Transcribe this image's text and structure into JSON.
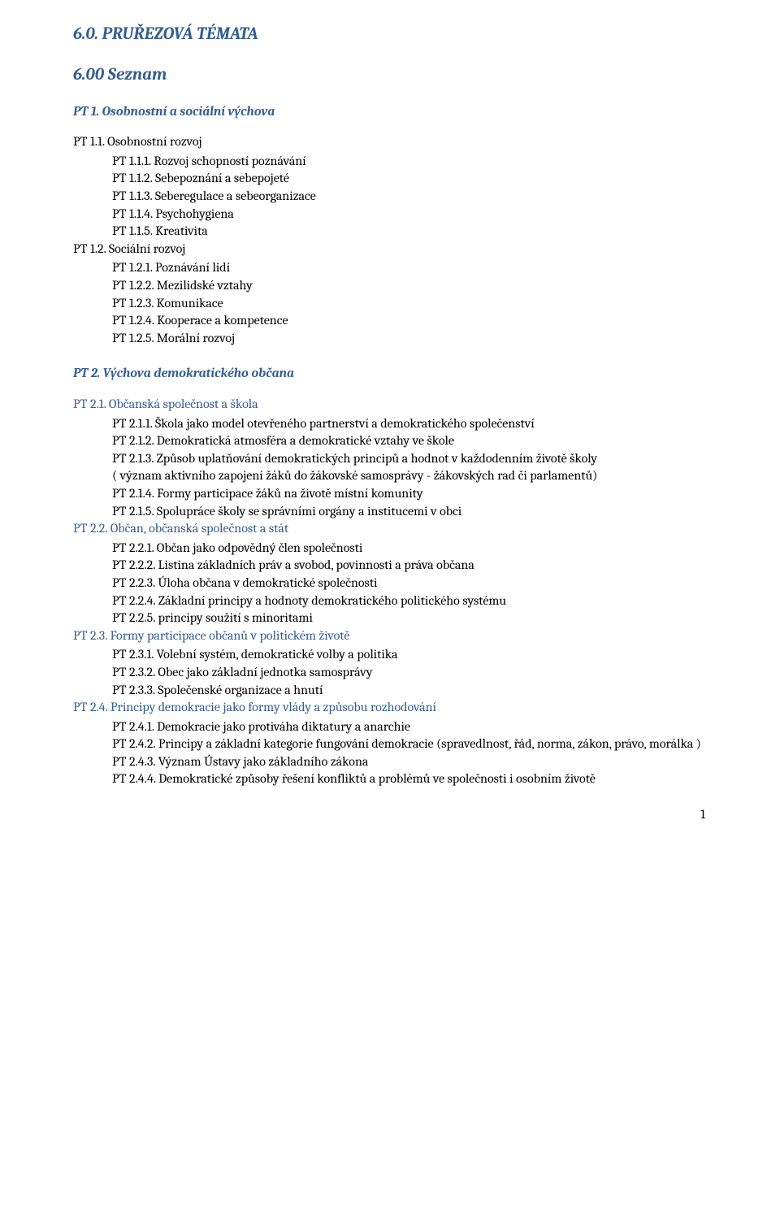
{
  "colors": {
    "heading": "#355e91",
    "link": "#355e91",
    "text": "#000000",
    "background": "#ffffff"
  },
  "typography": {
    "font_family": "Cambria, serif",
    "body_size_pt": 12,
    "h1_size_pt": 16,
    "h2_size_pt": 16,
    "h3_size_pt": 12
  },
  "page_number": "1",
  "h1": "6.0. PRUŘEZOVÁ TÉMATA",
  "h2": "6.00 Seznam",
  "pt1": {
    "title": "PT 1. Osobnostní a sociální výchova",
    "sub1": {
      "title": "PT 1.1. Osobnostní rozvoj",
      "i1": "PT 1.1.1.  Rozvoj schopností poznávání",
      "i2": "PT 1.1.2.  Sebepoznání a sebepojeté",
      "i3": "PT 1.1.3.  Seberegulace a sebeorganizace",
      "i4": "PT 1.1.4.  Psychohygiena",
      "i5": "PT 1.1.5.  Kreativita"
    },
    "sub2": {
      "title": "PT 1.2. Sociální rozvoj",
      "i1": "PT 1.2.1.  Poznávání lidí",
      "i2": "PT 1.2.2.  Mezilidské vztahy",
      "i3": "PT 1.2.3.  Komunikace",
      "i4": "PT 1.2.4.  Kooperace a kompetence",
      "i5": "PT 1.2.5.  Morální rozvoj"
    }
  },
  "pt2": {
    "title": "PT 2. Výchova demokratického občana",
    "sub1": {
      "title": "PT 2.1. Občanská společnost a škola",
      "i1": "PT 2.1.1.  Škola jako model otevřeného partnerství a demokratického společenství",
      "i2": "PT 2.1.2.   Demokratická atmosféra a demokratické vztahy ve škole",
      "i3": "PT 2.1.3.  Způsob uplatňování demokratických principů a hodnot v každodenním životě školy",
      "i3b": "( význam aktivního zapojení žáků do žákovské samosprávy - žákovských rad či parlamentů)",
      "i4": "PT 2.1.4.   Formy participace žáků na životě místní  komunity",
      "i5": "PT 2.1.5.   Spolupráce školy se správními orgány a institucemi v obci"
    },
    "sub2": {
      "title": "PT 2.2. Občan, občanská společnost a stát",
      "i1": "PT 2.2.1.   Občan jako odpovědný člen společnosti",
      "i2": "PT 2.2.2.   Listina základních práv a svobod, povinnosti a práva občana",
      "i3": "PT 2.2.3.   Úloha občana v demokratické společnosti",
      "i4": "PT 2.2.4.   Základní principy a  hodnoty demokratického politického systému",
      "i5": "PT 2.2.5.   principy soužití s minoritami"
    },
    "sub3": {
      "title": "PT 2.3. Formy participace občanů v politickém životě",
      "i1": "PT 2.3.1.   Volební systém, demokratické volby a politika",
      "i2": "PT 2.3.2.   Obec jako základní jednotka samosprávy",
      "i3": "PT 2.3.3.   Společenské organizace a hnutí"
    },
    "sub4": {
      "title": "PT 2.4. Principy demokracie jako formy vlády a způsobu rozhodování",
      "i1": "PT 2.4.1.   Demokracie jako protiváha diktatury a anarchie",
      "i2": "PT 2.4.2.   Principy a základní kategorie fungování  demokracie (spravedlnost, řád, norma, zákon, právo, morálka )",
      "i3": "PT 2.4.3.   Význam Ústavy jako základního zákona",
      "i4": "PT 2.4.4.   Demokratické způsoby řešení konfliktů a problémů ve společnosti i osobním životě"
    }
  }
}
